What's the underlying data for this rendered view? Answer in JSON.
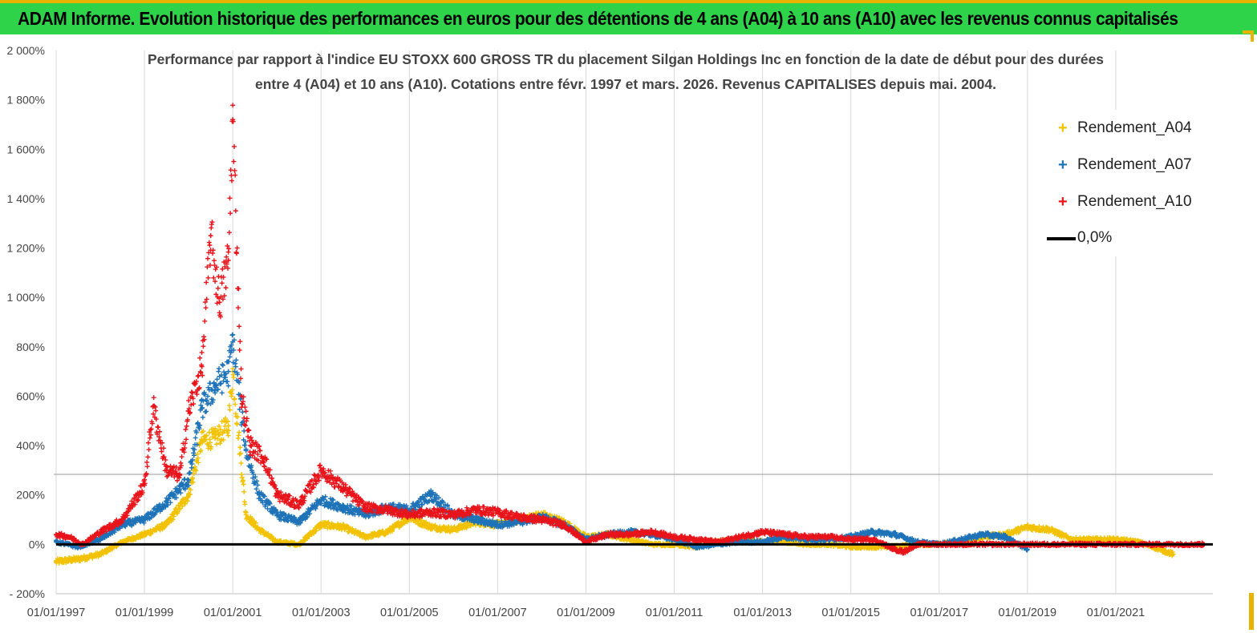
{
  "header": {
    "title": "ADAM Informe. Evolution historique des performances en euros pour des détentions de 4 ans (A04) à 10 ans (A10) avec les revenus connus capitalisés",
    "background_color": "#2fd34a"
  },
  "chart_data": {
    "type": "scatter",
    "title_line1": "Performance par rapport à l'indice EU STOXX 600 GROSS TR  du placement Silgan Holdings Inc en fonction de la date de début pour des durées",
    "title_line2": "entre 4 (A04) et 10 ans (A10). Cotations entre févr. 1997 et mars. 2026. Revenus CAPITALISES depuis mai. 2004.",
    "xlabel": "",
    "ylabel": "",
    "xlim": [
      1997.0,
      2023.2
    ],
    "ylim": [
      -200,
      2000
    ],
    "y_ticks": [
      -200,
      0,
      200,
      400,
      600,
      800,
      1000,
      1200,
      1400,
      1600,
      1800,
      2000
    ],
    "y_tick_labels": [
      "- 200%",
      "0%",
      "200%",
      "400%",
      "600%",
      "800%",
      "1 000%",
      "1 200%",
      "1 400%",
      "1 600%",
      "1 800%",
      "2 000%"
    ],
    "x_tick_years": [
      1997,
      1999,
      2001,
      2003,
      2005,
      2007,
      2009,
      2011,
      2013,
      2015,
      2017,
      2019,
      2021
    ],
    "x_tick_labels": [
      "01/01/1997",
      "01/01/1999",
      "01/01/2001",
      "01/01/2003",
      "01/01/2005",
      "01/01/2007",
      "01/01/2009",
      "01/01/2011",
      "01/01/2013",
      "01/01/2015",
      "01/01/2017",
      "01/01/2019",
      "01/01/2021"
    ],
    "grid": "vertical",
    "legend_position": "top-right",
    "zero_line": {
      "name": "0,0%",
      "value": 0,
      "color": "#000000"
    },
    "series": [
      {
        "name": "Rendement_A04",
        "color": "#f2c200",
        "x": [
          1997.0,
          1997.5,
          1998.0,
          1998.5,
          1999.0,
          1999.5,
          2000.0,
          2000.3,
          2000.6,
          2000.9,
          2001.0,
          2001.3,
          2001.6,
          2002.0,
          2002.5,
          2003.0,
          2003.5,
          2004.0,
          2004.5,
          2005.0,
          2005.5,
          2006.0,
          2006.5,
          2007.0,
          2007.5,
          2008.0,
          2008.5,
          2009.0,
          2009.5,
          2010.0,
          2010.5,
          2011.0,
          2011.5,
          2012.0,
          2012.5,
          2013.0,
          2013.5,
          2014.0,
          2014.5,
          2015.0,
          2015.5,
          2016.0,
          2016.5,
          2017.0,
          2017.5,
          2018.0,
          2018.5,
          2019.0,
          2019.5,
          2020.0,
          2020.5,
          2021.0,
          2021.5,
          2022.0,
          2022.3
        ],
        "y": [
          -70,
          -60,
          -40,
          10,
          40,
          80,
          200,
          420,
          430,
          480,
          700,
          120,
          60,
          10,
          0,
          80,
          70,
          30,
          50,
          110,
          70,
          60,
          90,
          80,
          100,
          120,
          90,
          30,
          40,
          20,
          0,
          0,
          -10,
          10,
          20,
          10,
          10,
          0,
          0,
          -10,
          -10,
          -10,
          0,
          0,
          10,
          30,
          40,
          70,
          60,
          20,
          20,
          20,
          10,
          -20,
          -40
        ]
      },
      {
        "name": "Rendement_A07",
        "color": "#1e73b8",
        "x": [
          1997.0,
          1997.5,
          1998.0,
          1998.5,
          1999.0,
          1999.5,
          2000.0,
          2000.3,
          2000.6,
          2000.9,
          2001.0,
          2001.3,
          2001.6,
          2002.0,
          2002.5,
          2003.0,
          2003.5,
          2004.0,
          2004.5,
          2005.0,
          2005.5,
          2006.0,
          2006.5,
          2007.0,
          2007.5,
          2008.0,
          2008.5,
          2009.0,
          2009.5,
          2010.0,
          2010.5,
          2011.0,
          2011.5,
          2012.0,
          2012.5,
          2013.0,
          2013.5,
          2014.0,
          2014.5,
          2015.0,
          2015.5,
          2016.0,
          2016.5,
          2017.0,
          2017.5,
          2018.0,
          2018.5,
          2019.0
        ],
        "y": [
          10,
          -10,
          20,
          80,
          100,
          170,
          260,
          550,
          640,
          700,
          820,
          380,
          200,
          120,
          90,
          180,
          150,
          120,
          150,
          140,
          200,
          120,
          100,
          80,
          90,
          110,
          80,
          20,
          40,
          50,
          40,
          20,
          -10,
          0,
          10,
          10,
          30,
          20,
          20,
          30,
          50,
          40,
          10,
          0,
          20,
          40,
          30,
          -20
        ]
      },
      {
        "name": "Rendement_A10",
        "color": "#e8141b",
        "x": [
          1997.0,
          1997.3,
          1997.6,
          1998.0,
          1998.5,
          1999.0,
          1999.2,
          1999.5,
          1999.8,
          2000.0,
          2000.3,
          2000.5,
          2000.7,
          2000.9,
          2001.0,
          2001.2,
          2001.4,
          2001.7,
          2002.0,
          2002.5,
          2003.0,
          2003.5,
          2004.0,
          2004.5,
          2005.0,
          2005.5,
          2006.0,
          2006.5,
          2007.0,
          2007.5,
          2008.0,
          2008.5,
          2009.0,
          2009.5,
          2010.0,
          2010.5,
          2011.0,
          2011.5,
          2012.0,
          2012.5,
          2013.0,
          2013.5,
          2014.0,
          2014.5,
          2015.0,
          2015.5,
          2016.0,
          2016.2,
          2016.5,
          2017.0,
          2018.0,
          2019.0,
          2020.0,
          2021.0,
          2022.0,
          2023.0
        ],
        "y": [
          40,
          30,
          0,
          50,
          100,
          240,
          560,
          300,
          280,
          540,
          720,
          1250,
          980,
          1150,
          1720,
          600,
          400,
          350,
          200,
          160,
          300,
          230,
          150,
          140,
          120,
          130,
          120,
          140,
          130,
          110,
          100,
          80,
          10,
          40,
          40,
          50,
          30,
          20,
          10,
          30,
          50,
          40,
          30,
          30,
          20,
          20,
          -20,
          -30,
          0,
          0,
          0,
          0,
          0,
          0,
          0,
          0
        ]
      }
    ]
  }
}
